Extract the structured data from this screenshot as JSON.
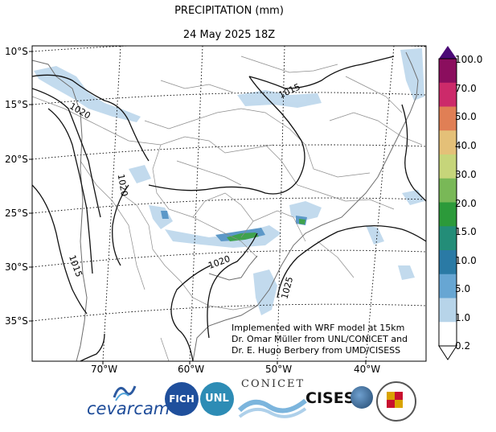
{
  "header": {
    "title": "PRECIPITATION (mm)",
    "subtitle": "24 May 2025 18Z"
  },
  "map": {
    "lat_labels": [
      "10°S",
      "15°S",
      "20°S",
      "25°S",
      "30°S",
      "35°S"
    ],
    "lon_labels": [
      "70°W",
      "60°W",
      "50°W",
      "40°W"
    ],
    "isobar_labels": [
      "1015",
      "1020",
      "1020",
      "1020",
      "1015",
      "1025"
    ],
    "credits": [
      "Implemented with WRF model at 15km",
      "Dr. Omar Müller from UNL/CONICET and",
      "Dr. E. Hugo Berbery from UMD/CISESS"
    ]
  },
  "colorbar": {
    "labels": [
      "100.0",
      "70.0",
      "50.0",
      "40.0",
      "30.0",
      "20.0",
      "15.0",
      "10.0",
      "5.0",
      "1.0",
      "0.2"
    ],
    "colors": [
      "#8b0e5e",
      "#cc2a6a",
      "#e07f55",
      "#e4c078",
      "#c6d57a",
      "#79b857",
      "#2c9a3a",
      "#238d78",
      "#2a7aa5",
      "#67a6d3",
      "#b7d4e9",
      "#ffffff"
    ],
    "top_color": "#4b0a76"
  },
  "logos": {
    "cevarcam": "cevarcam",
    "fich": "FICH",
    "unl": "UNL",
    "conicet": "CONICET",
    "cisess": "CISESS",
    "maryland": "UNIVERSITY OF MARYLAND"
  }
}
